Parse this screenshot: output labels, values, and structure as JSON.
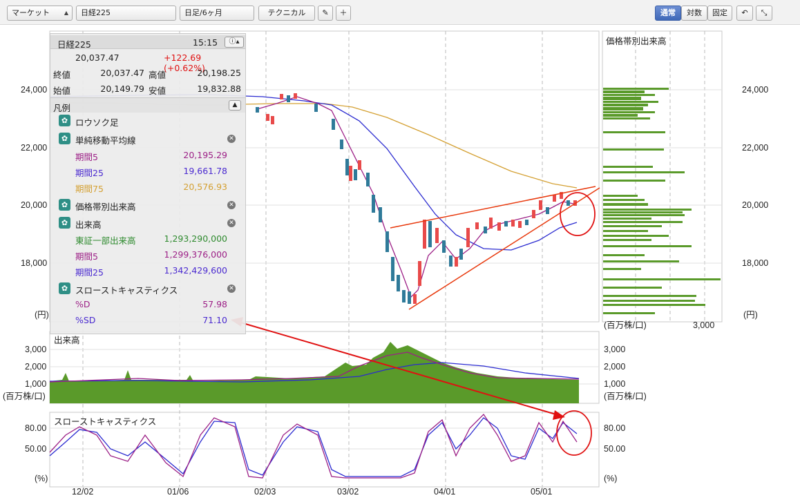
{
  "toolbar": {
    "market": "マーケット",
    "symbol": "日経225",
    "period": "日足/6ヶ月",
    "technical": "テクニカル",
    "pen_icon": "pencil-icon",
    "plus_icon": "plus-icon",
    "mode_normal": "通常",
    "mode_log": "対数",
    "mode_fixed": "固定",
    "undo_icon": "undo-icon",
    "fullscreen_icon": "fullscreen-icon"
  },
  "quote": {
    "name": "日経225",
    "time": "15:15",
    "price": "20,037.47",
    "change": "+122.69 (+0.62%)",
    "close_label": "終値",
    "close": "20,037.47",
    "high_label": "高値",
    "high": "20,198.25",
    "open_label": "始値",
    "open": "20,149.79",
    "low_label": "安値",
    "low": "19,832.88"
  },
  "legend": {
    "title": "凡例",
    "candles": "ロウソク足",
    "sma": "単純移動平均線",
    "sma5_label": "期間5",
    "sma5": "20,195.29",
    "sma25_label": "期間25",
    "sma25": "19,661.78",
    "sma75_label": "期間75",
    "sma75": "20,576.93",
    "vbp": "価格帯別出来高",
    "volume": "出来高",
    "tse_label": "東証一部出来高",
    "tse": "1,293,290,000",
    "vol5_label": "期間5",
    "vol5": "1,299,376,000",
    "vol25_label": "期間25",
    "vol25": "1,342,429,600",
    "stoch": "スローストキャスティクス",
    "pd_label": "%D",
    "pd": "57.98",
    "psd_label": "%SD",
    "psd": "71.10"
  },
  "axes": {
    "price_ticks": [
      "24,000",
      "22,000",
      "20,000",
      "18,000"
    ],
    "price_unit": "(円)",
    "vbp_title": "価格帯別出来高",
    "vbp_unit": "(百万株/口)",
    "vbp_tick": "3,000",
    "vol_title": "出来高",
    "vol_ticks": [
      "3,000",
      "2,000",
      "1,000"
    ],
    "vol_unit": "(百万株/口)",
    "stoch_title": "スローストキャスティクス",
    "stoch_ticks": [
      "80.00",
      "50.00"
    ],
    "stoch_unit": "(%)",
    "dates": [
      "12/02",
      "01/06",
      "02/03",
      "03/02",
      "04/01",
      "05/01"
    ]
  },
  "colors": {
    "up": "#e84a4a",
    "down": "#2f7a99",
    "sma5": "#9c1f86",
    "sma25": "#2a2ad0",
    "sma75": "#d4a032",
    "volume": "#5a9a2a",
    "trend": "#e8380c",
    "annot": "#e01010",
    "accent": "#3f68b8"
  },
  "chart_data": [
    {
      "type": "line",
      "title": "日経225",
      "note": "daily candles with SMA5/25/75, approx Nov–May",
      "ylim": [
        16500,
        25000
      ],
      "series": [
        {
          "name": "期間5",
          "values": [
            24100,
            23950,
            23800,
            23500,
            23200,
            22500,
            21000,
            19800,
            18200,
            17200,
            18000,
            18800,
            18900,
            19300,
            19700,
            19800,
            20000,
            20195
          ]
        },
        {
          "name": "期間25",
          "values": [
            23900,
            23850,
            23700,
            23500,
            23300,
            22900,
            22100,
            21000,
            19900,
            19000,
            18700,
            18800,
            19000,
            19200,
            19400,
            19500,
            19600,
            19662
          ]
        },
        {
          "name": "期間75",
          "values": [
            23500,
            23550,
            23600,
            23550,
            23400,
            23200,
            22900,
            22500,
            22100,
            21700,
            21400,
            21100,
            20900,
            20800,
            20700,
            20650,
            20600,
            20577
          ]
        }
      ]
    },
    {
      "type": "bar",
      "title": "出来高",
      "ylim": [
        0,
        3500
      ],
      "values": [
        1200,
        1250,
        1100,
        1300,
        1200,
        1400,
        1350,
        1500,
        2000,
        2600,
        3200,
        2500,
        1700,
        1500,
        1400,
        1350,
        1300,
        1290
      ]
    },
    {
      "type": "line",
      "title": "スローストキャスティクス",
      "ylim": [
        0,
        100
      ],
      "series": [
        {
          "name": "%D",
          "values": [
            40,
            75,
            85,
            15,
            20,
            90,
            95,
            5,
            10,
            85,
            90,
            5,
            20,
            95,
            30,
            90,
            60,
            85,
            58
          ]
        },
        {
          "name": "%SD",
          "values": [
            45,
            70,
            80,
            20,
            25,
            85,
            90,
            8,
            12,
            80,
            85,
            8,
            25,
            90,
            35,
            85,
            65,
            80,
            71
          ]
        }
      ]
    }
  ]
}
